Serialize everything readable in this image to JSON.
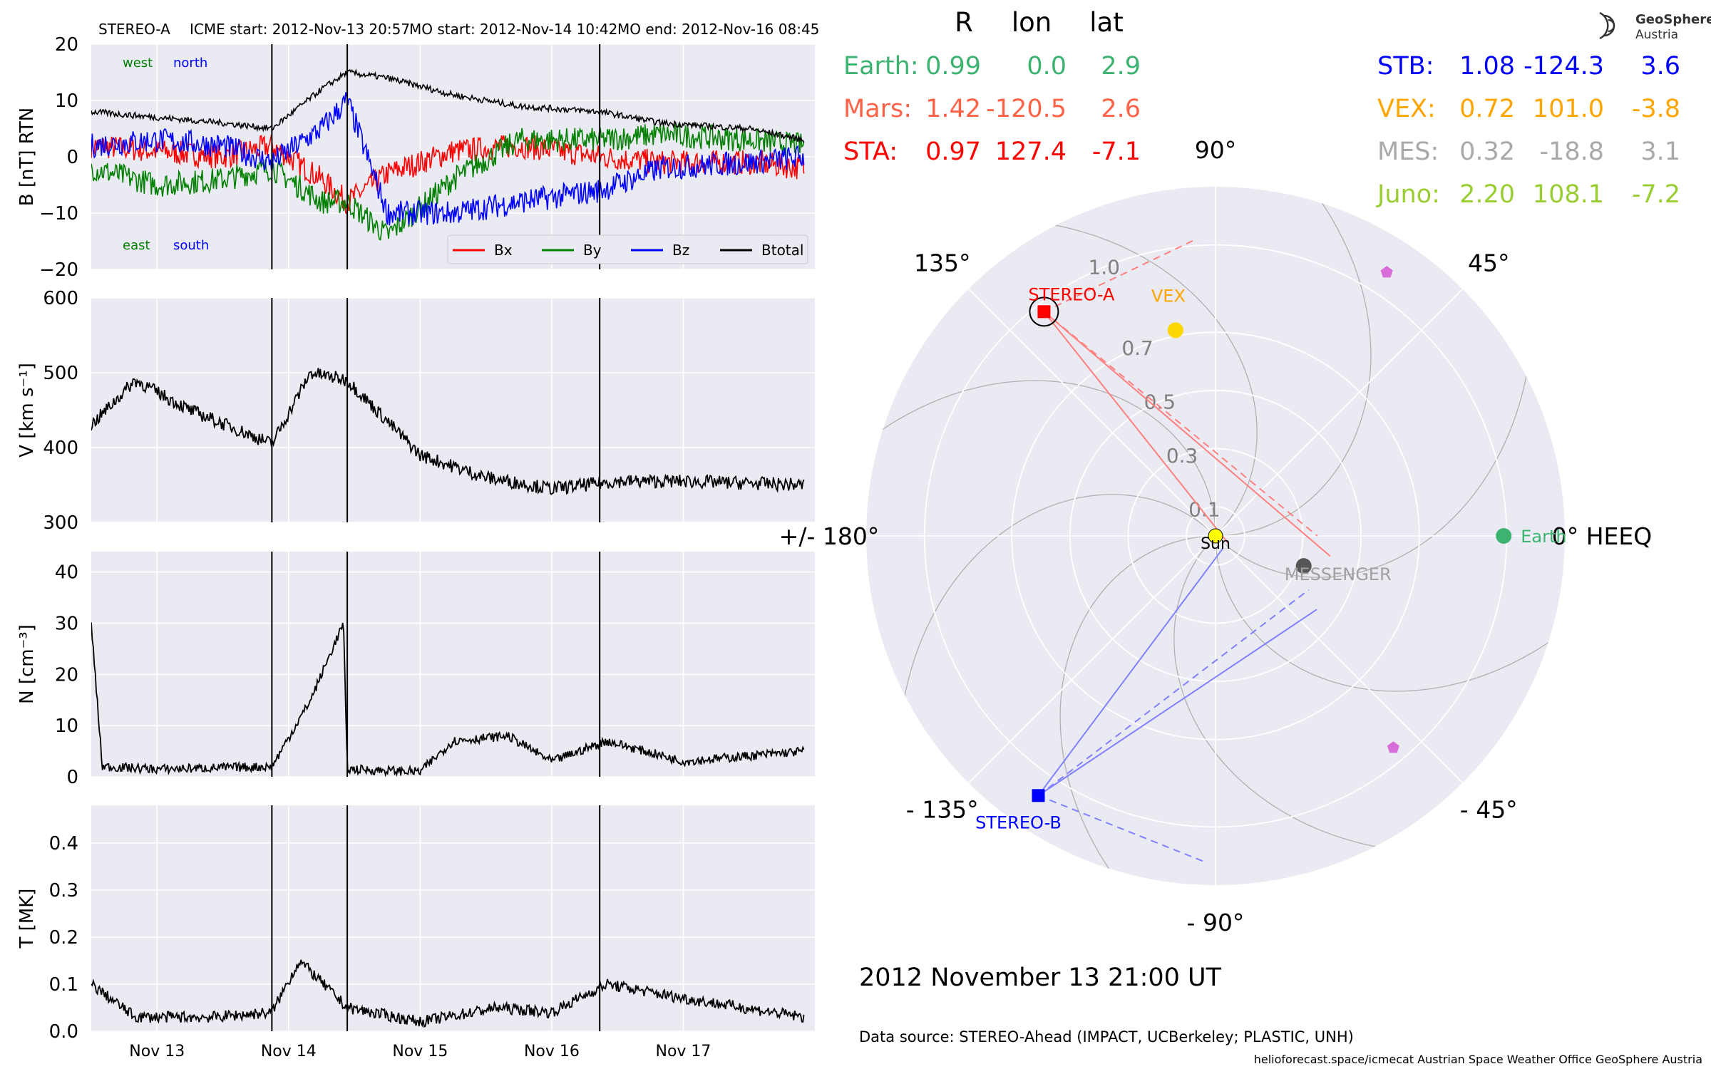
{
  "header": {
    "spacecraft": "STEREO-A",
    "icme_start": "ICME start: 2012-Nov-13 20:57",
    "mo_start": "MO start: 2012-Nov-14 10:42",
    "mo_end": "MO end: 2012-Nov-16 08:45"
  },
  "logo": {
    "line1": "GeoSphere",
    "line2": "Austria"
  },
  "positions_table": {
    "headers": [
      "R",
      "lon",
      "lat"
    ],
    "left": [
      {
        "name": "Earth:",
        "R": "0.99",
        "lon": "0.0",
        "lat": "2.9",
        "color": "#3cb371"
      },
      {
        "name": "Mars:",
        "R": "1.42",
        "lon": "-120.5",
        "lat": "2.6",
        "color": "#ff6347"
      },
      {
        "name": "STA:",
        "R": "0.97",
        "lon": "127.4",
        "lat": "-7.1",
        "color": "#ff0000"
      }
    ],
    "right": [
      {
        "name": "STB:",
        "R": "1.08",
        "lon": "-124.3",
        "lat": "3.6",
        "color": "#0000ff"
      },
      {
        "name": "VEX:",
        "R": "0.72",
        "lon": "101.0",
        "lat": "-3.8",
        "color": "#ffa500"
      },
      {
        "name": "MES:",
        "R": "0.32",
        "lon": "-18.8",
        "lat": "3.1",
        "color": "#a9a9a9"
      },
      {
        "name": "Juno:",
        "R": "2.20",
        "lon": "108.1",
        "lat": "-7.2",
        "color": "#9acd32"
      }
    ]
  },
  "polar_plot": {
    "angle_labels": [
      {
        "text": "0° HEEQ",
        "deg": 0
      },
      {
        "text": "45°",
        "deg": 45
      },
      {
        "text": "90°",
        "deg": 90
      },
      {
        "text": "135°",
        "deg": 135
      },
      {
        "text": "+/- 180°",
        "deg": 180
      },
      {
        "text": "- 135°",
        "deg": -135
      },
      {
        "text": "- 90°",
        "deg": -90
      },
      {
        "text": "- 45°",
        "deg": -45
      }
    ],
    "radial_ticks": [
      "0.1",
      "0.3",
      "0.5",
      "0.7",
      "1.0"
    ],
    "radial_values": [
      0.1,
      0.3,
      0.5,
      0.7,
      1.0
    ],
    "rmax": 1.2,
    "bodies": [
      {
        "label": "Earth",
        "r": 0.99,
        "lon": 0.0,
        "color": "#3cb371",
        "marker": "circle"
      },
      {
        "label": "STEREO-A",
        "r": 0.97,
        "lon": 127.4,
        "color": "#ff0000",
        "marker": "square"
      },
      {
        "label": "STEREO-B",
        "r": 1.08,
        "lon": -124.3,
        "color": "#0000ff",
        "marker": "square"
      },
      {
        "label": "VEX",
        "r": 0.72,
        "lon": 101.0,
        "color": "#ffd700",
        "marker": "circle"
      },
      {
        "label": "MESSENGER",
        "r": 0.32,
        "lon": -18.8,
        "color": "#555555",
        "marker": "circle"
      },
      {
        "label": "Sun",
        "r": 0,
        "lon": 0,
        "color": "#ffff00",
        "marker": "circle"
      }
    ],
    "extra_markers": [
      {
        "r": 1.08,
        "lon": 57,
        "color": "#d86fd8"
      },
      {
        "r": 0.95,
        "lon": -50,
        "color": "#d86fd8"
      }
    ]
  },
  "date_label": "2012 November 13  21:00 UT",
  "data_source": "Data source: STEREO-Ahead (IMPACT, UCBerkeley; PLASTIC, UNH)",
  "footer": "helioforecast.space/icmecat   Austrian Space Weather Office   GeoSphere Austria",
  "chart_data": [
    {
      "type": "line",
      "panel": "magnetic field",
      "ylabel": "B [nT] RTN",
      "ylim": [
        -20,
        20
      ],
      "yticks": [
        -20,
        -10,
        0,
        10,
        20
      ],
      "ytick_labels": [
        "−20",
        "−10",
        "0",
        "10",
        "20"
      ],
      "grid": true,
      "legend": "lower right",
      "annotations": [
        "west",
        "north",
        "east",
        "south"
      ],
      "x": [
        "Nov 12 12:00",
        "Nov 13 00:00",
        "Nov 13 12:00",
        "Nov 13 20:57",
        "Nov 14 06:00",
        "Nov 14 10:42",
        "Nov 14 18:00",
        "Nov 15 06:00",
        "Nov 15 18:00",
        "Nov 16 08:45",
        "Nov 16 20:00",
        "Nov 17 12:00",
        "Nov 17 22:00"
      ],
      "series": [
        {
          "name": "Bx",
          "color": "#ff0000",
          "values": [
            2,
            1,
            0,
            2,
            -4,
            -8,
            -3,
            1,
            2,
            0,
            -1,
            -1,
            -2
          ]
        },
        {
          "name": "By",
          "color": "#008000",
          "values": [
            -2,
            -5,
            -4,
            -2,
            -8,
            -8,
            -14,
            -4,
            3,
            3,
            4,
            3,
            2
          ]
        },
        {
          "name": "Bz",
          "color": "#0000ff",
          "values": [
            2,
            3,
            2,
            -1,
            5,
            10,
            -10,
            -10,
            -8,
            -6,
            -2,
            -1,
            0
          ]
        },
        {
          "name": "Btotal",
          "color": "#000000",
          "values": [
            8,
            7,
            6,
            5,
            12,
            15,
            14,
            11,
            9,
            8,
            6,
            5,
            3
          ]
        }
      ]
    },
    {
      "type": "line",
      "panel": "speed",
      "ylabel": "V [km s⁻¹]",
      "ylim": [
        300,
        600
      ],
      "yticks": [
        300,
        400,
        500,
        600
      ],
      "x": [
        "Nov 12 12:00",
        "Nov 12 20:00",
        "Nov 13 06:00",
        "Nov 13 20:57",
        "Nov 14 04:00",
        "Nov 14 10:42",
        "Nov 15 00:00",
        "Nov 15 12:00",
        "Nov 16 00:00",
        "Nov 16 12:00",
        "Nov 17 00:00",
        "Nov 17 22:00"
      ],
      "values": [
        430,
        490,
        450,
        405,
        500,
        490,
        390,
        360,
        345,
        355,
        355,
        350
      ]
    },
    {
      "type": "line",
      "panel": "density",
      "ylabel": "N [cm⁻³]",
      "ylim": [
        0,
        44
      ],
      "yticks": [
        0,
        10,
        20,
        30,
        40
      ],
      "x": [
        "Nov 12 12:00",
        "Nov 12 14:00",
        "Nov 13 00:00",
        "Nov 13 20:57",
        "Nov 14 04:00",
        "Nov 14 10:00",
        "Nov 14 10:42",
        "Nov 15 00:00",
        "Nov 15 06:00",
        "Nov 15 16:00",
        "Nov 16 00:00",
        "Nov 16 10:00",
        "Nov 17 00:00",
        "Nov 17 22:00"
      ],
      "values": [
        30,
        2,
        1.5,
        2,
        15,
        30,
        1.5,
        1,
        7,
        8,
        3,
        7,
        3,
        5
      ]
    },
    {
      "type": "line",
      "panel": "temperature",
      "ylabel": "T [MK]",
      "ylim": [
        0,
        0.48
      ],
      "yticks": [
        0.0,
        0.1,
        0.2,
        0.3,
        0.4
      ],
      "x": [
        "Nov 12 12:00",
        "Nov 12 20:00",
        "Nov 13 10:00",
        "Nov 13 20:57",
        "Nov 14 02:00",
        "Nov 14 10:42",
        "Nov 15 00:00",
        "Nov 15 14:00",
        "Nov 16 00:00",
        "Nov 16 10:00",
        "Nov 17 00:00",
        "Nov 17 22:00"
      ],
      "values": [
        0.1,
        0.03,
        0.03,
        0.04,
        0.15,
        0.05,
        0.02,
        0.05,
        0.04,
        0.1,
        0.07,
        0.03
      ]
    }
  ],
  "xaxis": {
    "tick_labels": [
      "Nov 13",
      "Nov 14",
      "Nov 15",
      "Nov 16",
      "Nov 17"
    ],
    "event_lines": [
      "2012-Nov-13 20:57",
      "2012-Nov-14 10:42",
      "2012-Nov-16 08:45"
    ]
  },
  "colors": {
    "panel_bg": "#eaeaf2",
    "grid": "#ffffff"
  }
}
